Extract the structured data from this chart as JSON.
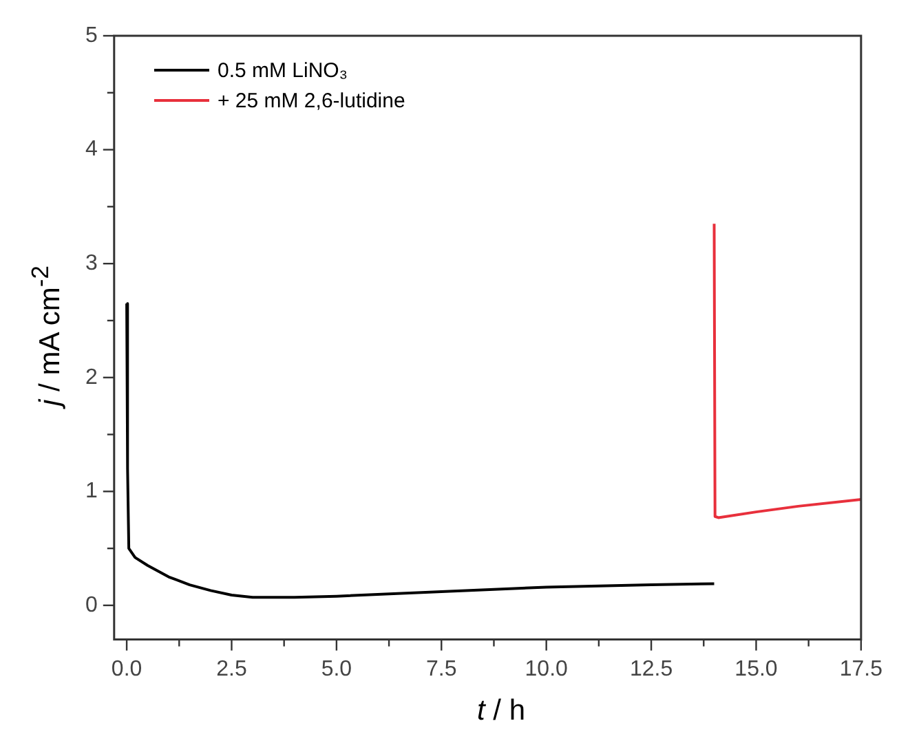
{
  "chart_data": {
    "type": "line",
    "xlabel": "t / h",
    "ylabel": "j / mA cm$^{-2}$",
    "xlim": [
      -0.3,
      17.5
    ],
    "ylim": [
      -0.3,
      5
    ],
    "xticks": [
      {
        "value": 0,
        "label": "0.0"
      },
      {
        "value": 1.25,
        "label": null
      },
      {
        "value": 2.5,
        "label": "2.5"
      },
      {
        "value": 3.75,
        "label": null
      },
      {
        "value": 5,
        "label": "5.0"
      },
      {
        "value": 6.25,
        "label": null
      },
      {
        "value": 7.5,
        "label": "7.5"
      },
      {
        "value": 8.75,
        "label": null
      },
      {
        "value": 10,
        "label": "10.0"
      },
      {
        "value": 11.25,
        "label": null
      },
      {
        "value": 12.5,
        "label": "12.5"
      },
      {
        "value": 13.75,
        "label": null
      },
      {
        "value": 15,
        "label": "15.0"
      },
      {
        "value": 16.25,
        "label": null
      },
      {
        "value": 17.5,
        "label": "17.5"
      }
    ],
    "yticks": [
      0,
      {
        "value": 0.5,
        "label": null
      },
      1,
      {
        "value": 1.5,
        "label": null
      },
      2,
      {
        "value": 2.5,
        "label": null
      },
      3,
      {
        "value": 3.5,
        "label": null
      },
      4,
      {
        "value": 4.5,
        "label": null
      },
      5
    ],
    "grid": false,
    "legend": "top left",
    "marker": "none",
    "line_style": "solid",
    "series": [
      {
        "name": "0.5 mM LiNO₃",
        "color": "#000000",
        "x": [
          0,
          0.02,
          0.05,
          0.2,
          0.5,
          1,
          1.5,
          2,
          2.5,
          3,
          4,
          5,
          7.5,
          10,
          12.5,
          14
        ],
        "values": [
          2.65,
          1.2,
          0.5,
          0.42,
          0.35,
          0.25,
          0.18,
          0.13,
          0.09,
          0.07,
          0.07,
          0.08,
          0.12,
          0.16,
          0.18,
          0.19
        ]
      },
      {
        "name": "+ 25 mM 2,6-lutidine",
        "color": "#e8303c",
        "x": [
          14,
          14.02,
          14.1,
          15,
          16,
          17.5
        ],
        "values": [
          3.35,
          0.78,
          0.77,
          0.82,
          0.87,
          0.93
        ]
      }
    ]
  }
}
